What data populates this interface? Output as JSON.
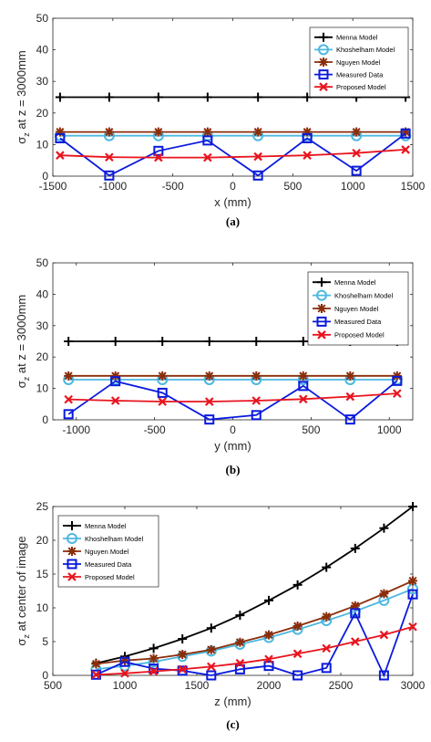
{
  "colors": {
    "menna": "#000000",
    "khoshelham": "#4db8e0",
    "nguyen": "#8b2d0a",
    "measured": "#0a1adc",
    "proposed": "#e8141e"
  },
  "legend_labels": [
    "Menna Model",
    "Khoshelham Model",
    "Nguyen Model",
    "Measured Data",
    "Proposed Model"
  ],
  "chart_data": [
    {
      "type": "line",
      "caption": "(a)",
      "xlabel": "x (mm)",
      "ylabel_sigma": "σ",
      "ylabel_sub": "z",
      "ylabel_rest": " at z = 3000mm",
      "xlim": [
        -1500,
        1500
      ],
      "ylim": [
        0,
        50
      ],
      "xticks": [
        -1500,
        -1000,
        -500,
        0,
        500,
        1000,
        1500
      ],
      "yticks": [
        0,
        10,
        20,
        30,
        40,
        50
      ],
      "legend_position": "top-right",
      "x": [
        -1440,
        -1030,
        -620,
        -210,
        210,
        620,
        1030,
        1440
      ],
      "series": [
        {
          "name": "Menna Model",
          "values": [
            25,
            25,
            25,
            25,
            25,
            25,
            25,
            25
          ]
        },
        {
          "name": "Khoshelham Model",
          "values": [
            12.8,
            12.8,
            12.8,
            12.8,
            12.8,
            12.8,
            12.8,
            12.8
          ]
        },
        {
          "name": "Nguyen Model",
          "values": [
            14,
            14,
            14,
            14,
            14,
            14,
            14,
            14
          ]
        },
        {
          "name": "Measured Data",
          "values": [
            12,
            0.2,
            8,
            11.3,
            0.2,
            12,
            1.7,
            13.5
          ]
        },
        {
          "name": "Proposed Model",
          "values": [
            6.6,
            6,
            5.9,
            5.9,
            6.2,
            6.6,
            7.3,
            8.4
          ]
        }
      ]
    },
    {
      "type": "line",
      "caption": "(b)",
      "xlabel": "y (mm)",
      "ylabel_sigma": "σ",
      "ylabel_sub": "z",
      "ylabel_rest": " at z = 3000mm",
      "xlim": [
        -1150,
        1150
      ],
      "ylim": [
        0,
        50
      ],
      "xticks": [
        -1000,
        -500,
        0,
        500,
        1000
      ],
      "yticks": [
        0,
        10,
        20,
        30,
        40,
        50
      ],
      "legend_position": "top-right",
      "x": [
        -1050,
        -750,
        -450,
        -150,
        150,
        450,
        750,
        1050
      ],
      "series": [
        {
          "name": "Menna Model",
          "values": [
            25,
            25,
            25,
            25,
            25,
            25,
            25,
            25
          ]
        },
        {
          "name": "Khoshelham Model",
          "values": [
            12.8,
            12.8,
            12.8,
            12.8,
            12.8,
            12.8,
            12.8,
            12.8
          ]
        },
        {
          "name": "Nguyen Model",
          "values": [
            14,
            14,
            14,
            14,
            14,
            14,
            14,
            14
          ]
        },
        {
          "name": "Measured Data",
          "values": [
            1.8,
            12.3,
            8.6,
            0.1,
            1.5,
            10.8,
            0.1,
            12.4
          ]
        },
        {
          "name": "Proposed Model",
          "values": [
            6.5,
            6.1,
            5.8,
            5.8,
            6.1,
            6.6,
            7.4,
            8.4
          ]
        }
      ]
    },
    {
      "type": "line",
      "caption": "(c)",
      "xlabel": "z (mm)",
      "ylabel_sigma": "σ",
      "ylabel_sub": "z",
      "ylabel_rest": " at center of image",
      "xlim": [
        500,
        3000
      ],
      "ylim": [
        0,
        25
      ],
      "xticks": [
        500,
        1000,
        1500,
        2000,
        2500,
        3000
      ],
      "yticks": [
        0,
        5,
        10,
        15,
        20,
        25
      ],
      "legend_position": "top-left",
      "x": [
        800,
        1000,
        1200,
        1400,
        1600,
        1800,
        2000,
        2200,
        2400,
        2600,
        2800,
        3000
      ],
      "series": [
        {
          "name": "Menna Model",
          "values": [
            1.8,
            2.8,
            4,
            5.4,
            7,
            8.9,
            11.1,
            13.4,
            16,
            18.8,
            21.8,
            25
          ]
        },
        {
          "name": "Khoshelham Model",
          "values": [
            0.9,
            1.4,
            2,
            2.8,
            3.6,
            4.6,
            5.6,
            6.8,
            8.1,
            9.5,
            11.1,
            12.8
          ]
        },
        {
          "name": "Nguyen Model",
          "values": [
            1.7,
            2.2,
            2.5,
            3.1,
            3.8,
            4.9,
            6,
            7.3,
            8.7,
            10.3,
            12.1,
            14
          ]
        },
        {
          "name": "Measured Data",
          "values": [
            0.1,
            2,
            1,
            0.7,
            0,
            0.9,
            1.4,
            0,
            1.1,
            9.2,
            0,
            12
          ]
        },
        {
          "name": "Proposed Model",
          "values": [
            0.1,
            0.3,
            0.6,
            0.9,
            1.3,
            1.8,
            2.4,
            3.2,
            4,
            5,
            6,
            7.2
          ]
        }
      ]
    }
  ]
}
